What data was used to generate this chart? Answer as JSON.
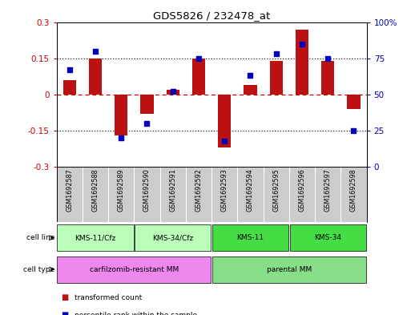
{
  "title": "GDS5826 / 232478_at",
  "samples": [
    "GSM1692587",
    "GSM1692588",
    "GSM1692589",
    "GSM1692590",
    "GSM1692591",
    "GSM1692592",
    "GSM1692593",
    "GSM1692594",
    "GSM1692595",
    "GSM1692596",
    "GSM1692597",
    "GSM1692598"
  ],
  "bar_values": [
    0.06,
    0.15,
    -0.17,
    -0.08,
    0.02,
    0.15,
    -0.22,
    0.04,
    0.14,
    0.27,
    0.14,
    -0.06
  ],
  "percentile_values": [
    67,
    80,
    20,
    30,
    52,
    75,
    18,
    63,
    78,
    85,
    75,
    25
  ],
  "bar_color": "#bb1111",
  "dot_color": "#0000bb",
  "ylim_left": [
    -0.3,
    0.3
  ],
  "ylim_right": [
    0,
    100
  ],
  "yticks_left": [
    -0.3,
    -0.15,
    0,
    0.15,
    0.3
  ],
  "yticks_right": [
    0,
    25,
    50,
    75,
    100
  ],
  "ytick_right_labels": [
    "0",
    "25",
    "50",
    "75",
    "100%"
  ],
  "hlines": [
    0.15,
    -0.15
  ],
  "zero_line_color": "#cc0000",
  "hline_color": "#222222",
  "cell_line_groups": [
    {
      "label": "KMS-11/Cfz",
      "start": 0,
      "end": 3,
      "color": "#bbffbb"
    },
    {
      "label": "KMS-34/Cfz",
      "start": 3,
      "end": 6,
      "color": "#bbffbb"
    },
    {
      "label": "KMS-11",
      "start": 6,
      "end": 9,
      "color": "#44dd44"
    },
    {
      "label": "KMS-34",
      "start": 9,
      "end": 12,
      "color": "#44dd44"
    }
  ],
  "cell_type_groups": [
    {
      "label": "carfilzomib-resistant MM",
      "start": 0,
      "end": 6,
      "color": "#ee88ee"
    },
    {
      "label": "parental MM",
      "start": 6,
      "end": 12,
      "color": "#88dd88"
    }
  ],
  "legend_items": [
    {
      "label": "transformed count",
      "color": "#bb1111"
    },
    {
      "label": "percentile rank within the sample",
      "color": "#0000bb"
    }
  ],
  "bg_color": "#ffffff",
  "box_color": "#cccccc",
  "bar_width": 0.5
}
